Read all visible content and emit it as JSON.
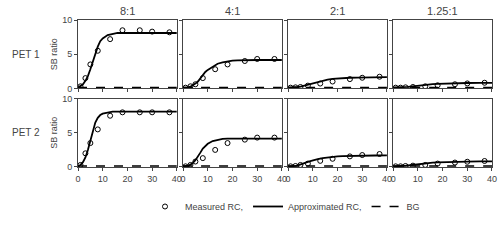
{
  "chart_data": [
    {
      "type": "line",
      "title": "8:1",
      "y_label": "SB ratio",
      "annotations": [
        "PET 1"
      ],
      "tick_labels": "y",
      "grid": false,
      "legend": "bottom",
      "xlim": [
        0,
        40
      ],
      "ylim": [
        0,
        10
      ],
      "xticks": [
        0,
        10,
        20,
        30,
        40
      ],
      "yticks": [
        0,
        5,
        10
      ],
      "series": [
        {
          "name": "Measured RC,",
          "type": "scatter",
          "marker": "circle-open",
          "color": "black",
          "x": [
            1,
            3,
            5,
            8,
            13,
            18,
            25,
            30,
            37
          ],
          "values": [
            0.3,
            1.5,
            3.5,
            5.5,
            7.2,
            8.5,
            8.5,
            8.3,
            8.2
          ]
        },
        {
          "name": "Approximated RC,",
          "type": "line",
          "line_style": "solid",
          "color": "black",
          "x": [
            0,
            1,
            2,
            3,
            4,
            5,
            6,
            7,
            8,
            9,
            10,
            12,
            14,
            16,
            18,
            20,
            22,
            25,
            28,
            30,
            35,
            40
          ],
          "values": [
            0.1,
            0.3,
            0.6,
            1.1,
            1.8,
            2.8,
            4.0,
            5.2,
            6.1,
            6.9,
            7.3,
            7.8,
            8.0,
            8.1,
            8.1,
            8.1,
            8.1,
            8.1,
            8.1,
            8.1,
            8.1,
            8.1
          ]
        },
        {
          "name": "BG",
          "type": "hline",
          "line_style": "dashed",
          "color": "black",
          "values": [
            0.15
          ]
        }
      ]
    },
    {
      "type": "line",
      "title": "4:1",
      "tick_labels": false,
      "grid": false,
      "xlim": [
        0,
        40
      ],
      "ylim": [
        0,
        10
      ],
      "xticks": [
        0,
        10,
        20,
        30,
        40
      ],
      "yticks": [
        0,
        5,
        10
      ],
      "series": [
        {
          "name": "Measured RC,",
          "type": "scatter",
          "marker": "circle-open",
          "color": "black",
          "x": [
            1,
            3,
            5,
            8,
            13,
            18,
            25,
            30,
            37
          ],
          "values": [
            0.1,
            0.3,
            0.6,
            1.5,
            2.8,
            3.5,
            4.0,
            4.3,
            4.3
          ]
        },
        {
          "name": "Approximated RC,",
          "type": "line",
          "line_style": "solid",
          "color": "black",
          "x": [
            0,
            1,
            2,
            3,
            4,
            5,
            6,
            7,
            8,
            9,
            10,
            12,
            14,
            16,
            18,
            20,
            22,
            25,
            28,
            30,
            35,
            40
          ],
          "values": [
            0.1,
            0.1,
            0.15,
            0.25,
            0.45,
            0.7,
            1.0,
            1.5,
            1.9,
            2.4,
            2.7,
            3.2,
            3.6,
            3.8,
            3.95,
            4.05,
            4.1,
            4.15,
            4.15,
            4.15,
            4.15,
            4.15
          ]
        },
        {
          "name": "BG",
          "type": "hline",
          "line_style": "dashed",
          "color": "black",
          "values": [
            0.15
          ]
        }
      ]
    },
    {
      "type": "line",
      "title": "2:1",
      "tick_labels": false,
      "grid": false,
      "xlim": [
        0,
        40
      ],
      "ylim": [
        0,
        10
      ],
      "xticks": [
        0,
        10,
        20,
        30,
        40
      ],
      "yticks": [
        0,
        5,
        10
      ],
      "series": [
        {
          "name": "Measured RC,",
          "type": "scatter",
          "marker": "circle-open",
          "color": "black",
          "x": [
            1,
            3,
            5,
            8,
            13,
            18,
            25,
            30,
            37
          ],
          "values": [
            0.1,
            0.15,
            0.2,
            0.4,
            0.7,
            1.0,
            1.35,
            1.55,
            1.7
          ]
        },
        {
          "name": "Approximated RC,",
          "type": "line",
          "line_style": "solid",
          "color": "black",
          "x": [
            0,
            1,
            2,
            3,
            4,
            5,
            6,
            7,
            8,
            9,
            10,
            12,
            14,
            16,
            18,
            20,
            22,
            25,
            28,
            30,
            35,
            40
          ],
          "values": [
            0.1,
            0.1,
            0.12,
            0.15,
            0.2,
            0.27,
            0.36,
            0.47,
            0.58,
            0.69,
            0.8,
            1.0,
            1.15,
            1.28,
            1.38,
            1.45,
            1.5,
            1.55,
            1.58,
            1.6,
            1.62,
            1.63
          ]
        },
        {
          "name": "BG",
          "type": "hline",
          "line_style": "dashed",
          "color": "black",
          "values": [
            0.15
          ]
        }
      ]
    },
    {
      "type": "line",
      "title": "1.25:1",
      "tick_labels": false,
      "grid": false,
      "xlim": [
        0,
        40
      ],
      "ylim": [
        0,
        10
      ],
      "xticks": [
        0,
        10,
        20,
        30,
        40
      ],
      "yticks": [
        0,
        5,
        10
      ],
      "series": [
        {
          "name": "Measured RC,",
          "type": "scatter",
          "marker": "circle-open",
          "color": "black",
          "x": [
            1,
            3,
            5,
            8,
            13,
            18,
            25,
            30,
            37
          ],
          "values": [
            0.1,
            0.1,
            0.15,
            0.2,
            0.3,
            0.45,
            0.6,
            0.72,
            0.82
          ]
        },
        {
          "name": "Approximated RC,",
          "type": "line",
          "line_style": "solid",
          "color": "black",
          "x": [
            0,
            1,
            2,
            3,
            4,
            5,
            6,
            7,
            8,
            9,
            10,
            12,
            14,
            16,
            18,
            20,
            22,
            25,
            28,
            30,
            35,
            40
          ],
          "values": [
            0.1,
            0.1,
            0.1,
            0.12,
            0.14,
            0.17,
            0.21,
            0.26,
            0.31,
            0.36,
            0.41,
            0.49,
            0.55,
            0.61,
            0.65,
            0.69,
            0.72,
            0.75,
            0.77,
            0.78,
            0.8,
            0.81
          ]
        },
        {
          "name": "BG",
          "type": "hline",
          "line_style": "dashed",
          "color": "black",
          "values": [
            0.15
          ]
        }
      ]
    },
    {
      "type": "line",
      "y_label": "SB ratio",
      "annotations": [
        "PET 2"
      ],
      "grid": false,
      "xlim": [
        0,
        40
      ],
      "ylim": [
        0,
        10
      ],
      "xticks": [
        0,
        10,
        20,
        30,
        40
      ],
      "yticks": [
        0,
        5,
        10
      ],
      "series": [
        {
          "name": "Measured RC,",
          "type": "scatter",
          "marker": "circle-open",
          "color": "black",
          "x": [
            1,
            3,
            5,
            8,
            13,
            18,
            25,
            30,
            37
          ],
          "values": [
            0.3,
            2.0,
            3.5,
            5.5,
            7.5,
            8.0,
            8.0,
            8.0,
            8.0
          ]
        },
        {
          "name": "Approximated RC,",
          "type": "line",
          "line_style": "solid",
          "color": "black",
          "x": [
            0,
            1,
            2,
            3,
            4,
            5,
            6,
            7,
            8,
            9,
            10,
            12,
            14,
            16,
            18,
            20,
            22,
            25,
            28,
            30,
            35,
            40
          ],
          "values": [
            0.1,
            0.3,
            0.7,
            1.4,
            2.5,
            3.8,
            5.3,
            6.5,
            7.2,
            7.6,
            7.8,
            8.0,
            8.1,
            8.1,
            8.1,
            8.1,
            8.1,
            8.1,
            8.1,
            8.1,
            8.1,
            8.1
          ]
        },
        {
          "name": "BG",
          "type": "hline",
          "line_style": "dashed",
          "color": "black",
          "values": [
            0.15
          ]
        }
      ]
    },
    {
      "type": "line",
      "tick_labels": "x",
      "grid": false,
      "xlim": [
        0,
        40
      ],
      "ylim": [
        0,
        10
      ],
      "xticks": [
        0,
        10,
        20,
        30,
        40
      ],
      "yticks": [
        0,
        5,
        10
      ],
      "series": [
        {
          "name": "Measured RC,",
          "type": "scatter",
          "marker": "circle-open",
          "color": "black",
          "x": [
            1,
            3,
            5,
            8,
            13,
            18,
            25,
            30,
            37
          ],
          "values": [
            0.1,
            0.3,
            0.8,
            1.3,
            2.5,
            3.5,
            4.0,
            4.3,
            4.3
          ]
        },
        {
          "name": "Approximated RC,",
          "type": "line",
          "line_style": "solid",
          "color": "black",
          "x": [
            0,
            1,
            2,
            3,
            4,
            5,
            6,
            7,
            8,
            9,
            10,
            12,
            14,
            16,
            18,
            20,
            22,
            25,
            28,
            30,
            35,
            40
          ],
          "values": [
            0.1,
            0.1,
            0.18,
            0.35,
            0.6,
            1.0,
            1.5,
            2.1,
            2.7,
            3.1,
            3.4,
            3.8,
            4.0,
            4.1,
            4.15,
            4.15,
            4.15,
            4.15,
            4.15,
            4.15,
            4.15,
            4.15
          ]
        },
        {
          "name": "BG",
          "type": "hline",
          "line_style": "dashed",
          "color": "black",
          "values": [
            0.15
          ]
        }
      ]
    },
    {
      "type": "line",
      "tick_labels": "x",
      "grid": false,
      "xlim": [
        0,
        40
      ],
      "ylim": [
        0,
        10
      ],
      "xticks": [
        0,
        10,
        20,
        30,
        40
      ],
      "yticks": [
        0,
        5,
        10
      ],
      "series": [
        {
          "name": "Measured RC,",
          "type": "scatter",
          "marker": "circle-open",
          "color": "black",
          "x": [
            1,
            3,
            5,
            8,
            13,
            18,
            25,
            30,
            37
          ],
          "values": [
            0.1,
            0.15,
            0.3,
            0.5,
            0.9,
            1.2,
            1.55,
            1.75,
            1.9
          ]
        },
        {
          "name": "Approximated RC,",
          "type": "line",
          "line_style": "solid",
          "color": "black",
          "x": [
            0,
            1,
            2,
            3,
            4,
            5,
            6,
            7,
            8,
            9,
            10,
            12,
            14,
            16,
            18,
            20,
            22,
            25,
            28,
            30,
            35,
            40
          ],
          "values": [
            0.1,
            0.1,
            0.13,
            0.17,
            0.24,
            0.34,
            0.46,
            0.6,
            0.74,
            0.87,
            0.98,
            1.16,
            1.3,
            1.4,
            1.48,
            1.54,
            1.58,
            1.62,
            1.65,
            1.66,
            1.68,
            1.69
          ]
        },
        {
          "name": "BG",
          "type": "hline",
          "line_style": "dashed",
          "color": "black",
          "values": [
            0.15
          ]
        }
      ]
    },
    {
      "type": "line",
      "tick_labels": "x",
      "grid": false,
      "xlim": [
        0,
        40
      ],
      "ylim": [
        0,
        10
      ],
      "xticks": [
        0,
        10,
        20,
        30,
        40
      ],
      "yticks": [
        0,
        5,
        10
      ],
      "series": [
        {
          "name": "Measured RC,",
          "type": "scatter",
          "marker": "circle-open",
          "color": "black",
          "x": [
            1,
            3,
            5,
            8,
            13,
            18,
            25,
            30,
            37
          ],
          "values": [
            0.1,
            0.1,
            0.15,
            0.2,
            0.3,
            0.5,
            0.65,
            0.77,
            0.88
          ]
        },
        {
          "name": "Approximated RC,",
          "type": "line",
          "line_style": "solid",
          "color": "black",
          "x": [
            0,
            1,
            2,
            3,
            4,
            5,
            6,
            7,
            8,
            9,
            10,
            12,
            14,
            16,
            18,
            20,
            22,
            25,
            28,
            30,
            35,
            40
          ],
          "values": [
            0.1,
            0.1,
            0.1,
            0.12,
            0.14,
            0.18,
            0.22,
            0.27,
            0.33,
            0.38,
            0.43,
            0.51,
            0.58,
            0.63,
            0.68,
            0.71,
            0.74,
            0.77,
            0.79,
            0.8,
            0.82,
            0.83
          ]
        },
        {
          "name": "BG",
          "type": "hline",
          "line_style": "dashed",
          "color": "black",
          "values": [
            0.15
          ]
        }
      ]
    }
  ]
}
